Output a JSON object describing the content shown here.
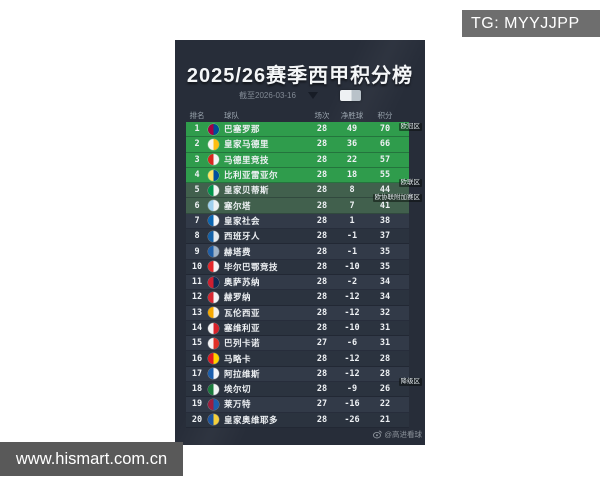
{
  "overlays": {
    "tg_label": "TG: MYYJJPP",
    "site_label": "www.hismart.com.cn"
  },
  "header": {
    "title": "2025/26赛季西甲积分榜",
    "date_note": "截至2026-03-16"
  },
  "table": {
    "columns": [
      "排名",
      "球队",
      "场次",
      "净胜球",
      "积分"
    ],
    "rows": [
      {
        "rank": 1,
        "team": "巴塞罗那",
        "played": 28,
        "gd": "49",
        "pts": 70,
        "zone": "ucl",
        "tag": "欧冠区",
        "logo": [
          "#a50044",
          "#004d98"
        ]
      },
      {
        "rank": 2,
        "team": "皇家马德里",
        "played": 28,
        "gd": "36",
        "pts": 66,
        "zone": "ucl",
        "logo": [
          "#f7f5f0",
          "#fdbe11"
        ]
      },
      {
        "rank": 3,
        "team": "马德里竞技",
        "played": 28,
        "gd": "22",
        "pts": 57,
        "zone": "ucl",
        "logo": [
          "#d6281e",
          "#f4f4f4"
        ]
      },
      {
        "rank": 4,
        "team": "比利亚雷亚尔",
        "played": 28,
        "gd": "18",
        "pts": 55,
        "zone": "ucl",
        "logo": [
          "#ffe566",
          "#00519e"
        ]
      },
      {
        "rank": 5,
        "team": "皇家贝蒂斯",
        "played": 28,
        "gd": "8",
        "pts": 44,
        "zone": "uel",
        "tag": "欧联区",
        "logo": [
          "#00954c",
          "#f2f5f3"
        ]
      },
      {
        "rank": 6,
        "team": "塞尔塔",
        "played": 28,
        "gd": "7",
        "pts": 41,
        "zone": "uel",
        "tag": "欧协联附加赛区",
        "logo": [
          "#9fd0ee",
          "#eef2f4"
        ]
      },
      {
        "rank": 7,
        "team": "皇家社会",
        "played": 28,
        "gd": "1",
        "pts": 38,
        "zone": "mid",
        "logo": [
          "#0a66b2",
          "#f4f6f8"
        ]
      },
      {
        "rank": 8,
        "team": "西班牙人",
        "played": 28,
        "gd": "-1",
        "pts": 37,
        "zone": "mid",
        "logo": [
          "#1462a8",
          "#e7ebee"
        ]
      },
      {
        "rank": 9,
        "team": "赫塔费",
        "played": 28,
        "gd": "-1",
        "pts": 35,
        "zone": "mid",
        "logo": [
          "#1f5fa8",
          "#9fb3c8"
        ]
      },
      {
        "rank": 10,
        "team": "毕尔巴鄂竞技",
        "played": 28,
        "gd": "-10",
        "pts": 35,
        "zone": "mid",
        "logo": [
          "#e5272a",
          "#f4f4f4"
        ]
      },
      {
        "rank": 11,
        "team": "奥萨苏纳",
        "played": 28,
        "gd": "-2",
        "pts": 34,
        "zone": "mid",
        "logo": [
          "#cf1f30",
          "#102a54"
        ]
      },
      {
        "rank": 12,
        "team": "赫罗纳",
        "played": 28,
        "gd": "-12",
        "pts": 34,
        "zone": "mid",
        "logo": [
          "#d72832",
          "#f2f4f6"
        ]
      },
      {
        "rank": 13,
        "team": "瓦伦西亚",
        "played": 28,
        "gd": "-12",
        "pts": 32,
        "zone": "mid",
        "logo": [
          "#f7a900",
          "#f4f1e8"
        ]
      },
      {
        "rank": 14,
        "team": "塞维利亚",
        "played": 28,
        "gd": "-10",
        "pts": 31,
        "zone": "mid",
        "logo": [
          "#f4f4f4",
          "#d8222a"
        ]
      },
      {
        "rank": 15,
        "team": "巴列卡诺",
        "played": 27,
        "gd": "-6",
        "pts": 31,
        "zone": "mid",
        "logo": [
          "#f4f4f6",
          "#e03028"
        ]
      },
      {
        "rank": 16,
        "team": "马略卡",
        "played": 28,
        "gd": "-12",
        "pts": 28,
        "zone": "mid",
        "logo": [
          "#e01a22",
          "#ffd200"
        ]
      },
      {
        "rank": 17,
        "team": "阿拉维斯",
        "played": 28,
        "gd": "-12",
        "pts": 28,
        "zone": "mid",
        "logo": [
          "#1b5fae",
          "#f4f6f8"
        ]
      },
      {
        "rank": 18,
        "team": "埃尔切",
        "played": 28,
        "gd": "-9",
        "pts": 26,
        "zone": "mid",
        "tag": "降级区",
        "logo": [
          "#1a7a3c",
          "#f2f4f4"
        ]
      },
      {
        "rank": 19,
        "team": "莱万特",
        "played": 27,
        "gd": "-16",
        "pts": 22,
        "zone": "mid",
        "logo": [
          "#9c1f3e",
          "#1b5fae"
        ]
      },
      {
        "rank": 20,
        "team": "皇家奥维耶多",
        "played": 28,
        "gd": "-26",
        "pts": 21,
        "zone": "mid",
        "logo": [
          "#1c54a0",
          "#f5d03c"
        ]
      }
    ]
  },
  "footer": {
    "watermark": "@高进看球"
  },
  "colors": {
    "ucl_zone": "#2f9c4c",
    "uel_zone": "#41604d",
    "row_dark": "#2b333f",
    "row_light": "#323a48",
    "photo_bg": "#272d39",
    "badge_bg": "#6e6e6e"
  }
}
